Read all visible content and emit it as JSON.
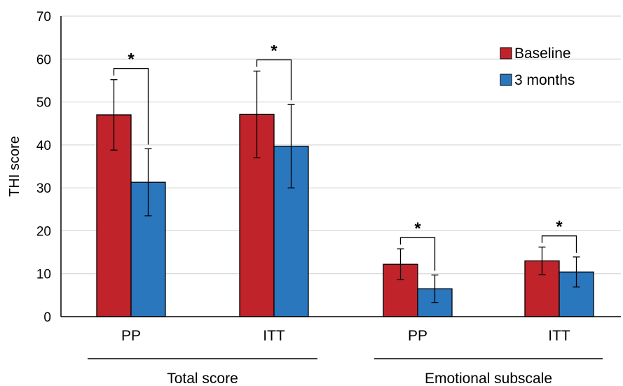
{
  "chart_data": {
    "type": "bar",
    "ylabel": "THI score",
    "ylim": [
      0,
      70
    ],
    "yticks": [
      0,
      10,
      20,
      30,
      40,
      50,
      60,
      70
    ],
    "grid": true,
    "legend_position": "top-right",
    "categories": [
      "PP",
      "ITT",
      "PP",
      "ITT"
    ],
    "groups": [
      {
        "label": "Total score",
        "categories": [
          0,
          1
        ]
      },
      {
        "label": "Emotional subscale",
        "categories": [
          2,
          3
        ]
      }
    ],
    "series": [
      {
        "name": "Baseline",
        "color": "#c0232a",
        "values": [
          47.0,
          47.1,
          12.2,
          13.0
        ],
        "error": [
          8.2,
          10.1,
          3.6,
          3.2
        ]
      },
      {
        "name": "3 months",
        "color": "#2a77be",
        "values": [
          31.3,
          39.7,
          6.5,
          10.4
        ],
        "error": [
          7.8,
          9.7,
          3.2,
          3.5
        ]
      }
    ],
    "significance": [
      {
        "category": 0,
        "label": "*"
      },
      {
        "category": 1,
        "label": "*"
      },
      {
        "category": 2,
        "label": "*"
      },
      {
        "category": 3,
        "label": "*"
      }
    ]
  }
}
